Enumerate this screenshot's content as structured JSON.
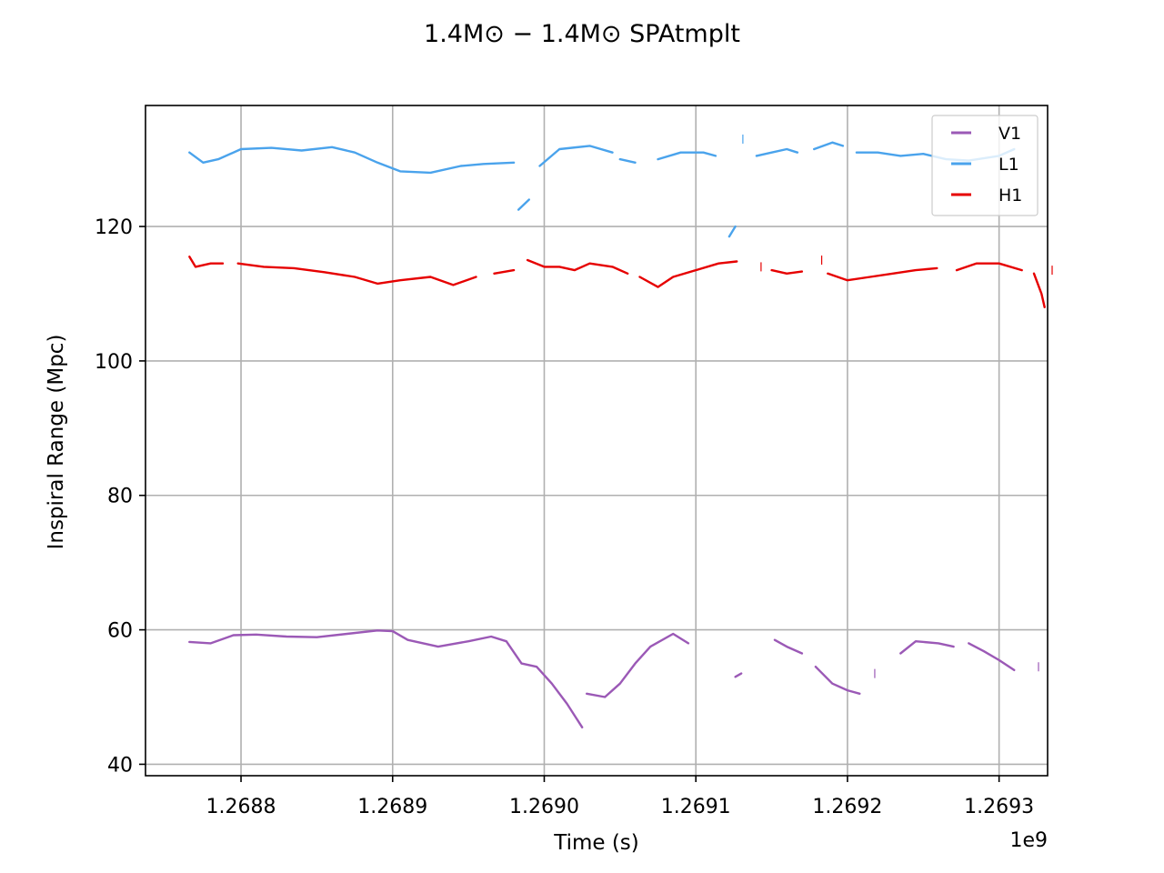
{
  "chart_data": {
    "type": "line",
    "title": "1.4M⊙ − 1.4M⊙ SPAtmplt",
    "xlabel": "Time (s)",
    "ylabel": "Inspiral Range (Mpc)",
    "x_offset_label": "1e9",
    "xlim": [
      1268737000,
      1269332000
    ],
    "ylim": [
      38.3,
      138.0
    ],
    "xticks": [
      1268800000,
      1268900000,
      1269000000,
      1269100000,
      1269200000,
      1269300000
    ],
    "xtick_labels": [
      "1.2688",
      "1.2689",
      "1.2690",
      "1.2691",
      "1.2692",
      "1.2693"
    ],
    "yticks": [
      40,
      60,
      80,
      100,
      120
    ],
    "ytick_labels": [
      "40",
      "60",
      "80",
      "100",
      "120"
    ],
    "grid": true,
    "legend_position": "top-right",
    "series": [
      {
        "name": "V1",
        "color": "#9b59b6",
        "segments": [
          [
            [
              1268766000,
              58.2
            ],
            [
              1268780000,
              58.0
            ],
            [
              1268795000,
              59.2
            ],
            [
              1268810000,
              59.3
            ],
            [
              1268830000,
              59.0
            ],
            [
              1268850000,
              58.9
            ],
            [
              1268870000,
              59.4
            ],
            [
              1268890000,
              59.9
            ],
            [
              1268900000,
              59.8
            ],
            [
              1268910000,
              58.5
            ],
            [
              1268930000,
              57.5
            ],
            [
              1268950000,
              58.3
            ],
            [
              1268965000,
              59.0
            ],
            [
              1268975000,
              58.3
            ],
            [
              1268985000,
              55.0
            ],
            [
              1268995000,
              54.5
            ],
            [
              1269005000,
              52.0
            ],
            [
              1269015000,
              49.0
            ],
            [
              1269025000,
              45.5
            ]
          ],
          [
            [
              1269028000,
              50.5
            ],
            [
              1269040000,
              50.0
            ],
            [
              1269050000,
              52.0
            ],
            [
              1269060000,
              55.0
            ],
            [
              1269070000,
              57.5
            ],
            [
              1269085000,
              59.4
            ],
            [
              1269095000,
              58.0
            ]
          ],
          [
            [
              1269126000,
              53.0
            ],
            [
              1269130000,
              53.5
            ]
          ],
          [
            [
              1269152000,
              58.5
            ],
            [
              1269160000,
              57.5
            ],
            [
              1269170000,
              56.5
            ]
          ],
          [
            [
              1269179000,
              54.5
            ],
            [
              1269190000,
              52.0
            ],
            [
              1269200000,
              51.0
            ],
            [
              1269208000,
              50.5
            ]
          ],
          [
            [
              1269218000,
              53.5
            ]
          ],
          [
            [
              1269235000,
              56.5
            ],
            [
              1269245000,
              58.3
            ],
            [
              1269260000,
              58.0
            ],
            [
              1269270000,
              57.5
            ]
          ],
          [
            [
              1269280000,
              58.0
            ],
            [
              1269290000,
              56.8
            ],
            [
              1269300000,
              55.5
            ],
            [
              1269310000,
              54.0
            ]
          ],
          [
            [
              1269326000,
              54.5
            ]
          ]
        ]
      },
      {
        "name": "L1",
        "color": "#4aa3ec",
        "segments": [
          [
            [
              1268766000,
              131.0
            ],
            [
              1268775000,
              129.5
            ],
            [
              1268785000,
              130.0
            ],
            [
              1268800000,
              131.5
            ],
            [
              1268820000,
              131.7
            ],
            [
              1268840000,
              131.3
            ],
            [
              1268860000,
              131.8
            ],
            [
              1268875000,
              131.0
            ],
            [
              1268890000,
              129.5
            ],
            [
              1268905000,
              128.2
            ],
            [
              1268925000,
              128.0
            ],
            [
              1268945000,
              129.0
            ],
            [
              1268960000,
              129.3
            ],
            [
              1268980000,
              129.5
            ]
          ],
          [
            [
              1268983000,
              122.5
            ],
            [
              1268990000,
              124.0
            ]
          ],
          [
            [
              1268997000,
              129.0
            ],
            [
              1269010000,
              131.5
            ],
            [
              1269030000,
              132.0
            ],
            [
              1269045000,
              131.0
            ]
          ],
          [
            [
              1269050000,
              130.0
            ],
            [
              1269060000,
              129.5
            ]
          ],
          [
            [
              1269075000,
              130.0
            ],
            [
              1269090000,
              131.0
            ],
            [
              1269105000,
              131.0
            ],
            [
              1269113000,
              130.5
            ]
          ],
          [
            [
              1269122000,
              118.5
            ],
            [
              1269126000,
              120.0
            ]
          ],
          [
            [
              1269131000,
              133.0
            ]
          ],
          [
            [
              1269140000,
              130.5
            ],
            [
              1269150000,
              131.0
            ],
            [
              1269160000,
              131.5
            ],
            [
              1269167000,
              131.0
            ]
          ],
          [
            [
              1269178000,
              131.5
            ],
            [
              1269190000,
              132.5
            ],
            [
              1269197000,
              132.0
            ]
          ],
          [
            [
              1269206000,
              131.0
            ],
            [
              1269220000,
              131.0
            ],
            [
              1269235000,
              130.5
            ],
            [
              1269250000,
              130.8
            ],
            [
              1269265000,
              130.0
            ],
            [
              1269280000,
              129.8
            ],
            [
              1269300000,
              130.5
            ],
            [
              1269310000,
              131.5
            ]
          ]
        ]
      },
      {
        "name": "H1",
        "color": "#e60000",
        "segments": [
          [
            [
              1268766000,
              115.5
            ],
            [
              1268770000,
              114.0
            ],
            [
              1268780000,
              114.5
            ],
            [
              1268788000,
              114.5
            ]
          ],
          [
            [
              1268798000,
              114.5
            ],
            [
              1268815000,
              114.0
            ],
            [
              1268835000,
              113.8
            ],
            [
              1268855000,
              113.2
            ],
            [
              1268875000,
              112.5
            ],
            [
              1268890000,
              111.5
            ],
            [
              1268905000,
              112.0
            ],
            [
              1268925000,
              112.5
            ],
            [
              1268940000,
              111.3
            ],
            [
              1268955000,
              112.5
            ]
          ],
          [
            [
              1268967000,
              113.0
            ],
            [
              1268980000,
              113.5
            ]
          ],
          [
            [
              1268989000,
              115.0
            ],
            [
              1269000000,
              114.0
            ],
            [
              1269010000,
              114.0
            ],
            [
              1269020000,
              113.5
            ],
            [
              1269030000,
              114.5
            ],
            [
              1269045000,
              114.0
            ],
            [
              1269055000,
              113.0
            ]
          ],
          [
            [
              1269063000,
              112.5
            ],
            [
              1269075000,
              111.0
            ],
            [
              1269085000,
              112.5
            ],
            [
              1269100000,
              113.5
            ],
            [
              1269115000,
              114.5
            ],
            [
              1269127000,
              114.8
            ]
          ],
          [
            [
              1269143000,
              114.0
            ]
          ],
          [
            [
              1269150000,
              113.5
            ],
            [
              1269160000,
              113.0
            ],
            [
              1269170000,
              113.3
            ]
          ],
          [
            [
              1269183000,
              115.0
            ]
          ],
          [
            [
              1269187000,
              113.0
            ],
            [
              1269200000,
              112.0
            ],
            [
              1269215000,
              112.5
            ],
            [
              1269230000,
              113.0
            ],
            [
              1269245000,
              113.5
            ],
            [
              1269259000,
              113.8
            ]
          ],
          [
            [
              1269272000,
              113.5
            ],
            [
              1269285000,
              114.5
            ],
            [
              1269300000,
              114.5
            ],
            [
              1269315000,
              113.5
            ]
          ],
          [
            [
              1269323000,
              113.0
            ],
            [
              1269328000,
              110.0
            ],
            [
              1269330000,
              108.0
            ]
          ],
          [
            [
              1269335000,
              113.5
            ]
          ]
        ]
      }
    ]
  }
}
